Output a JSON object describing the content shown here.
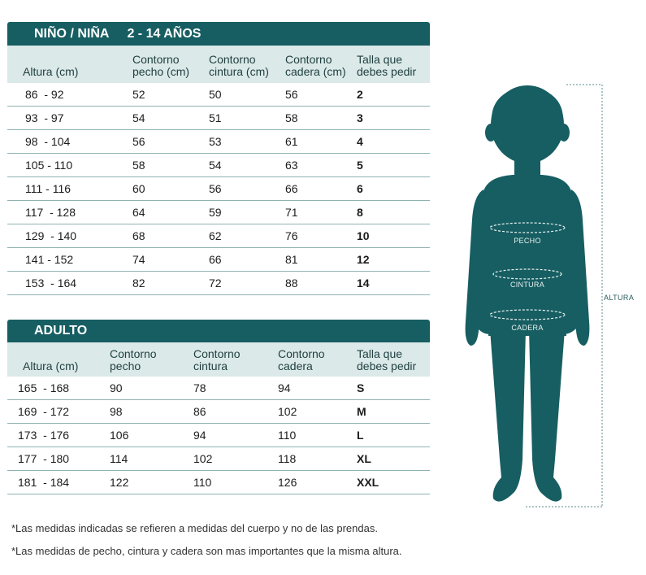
{
  "kids": {
    "title": "NIÑO / NIÑA",
    "range": "2 - 14 AÑOS",
    "headers": [
      "Altura (cm)",
      "Contorno\npecho (cm)",
      "Contorno\ncintura (cm)",
      "Contorno\ncadera (cm)",
      "Talla que\ndebes pedir"
    ],
    "rows": [
      [
        "86  - 92",
        "52",
        "50",
        "56",
        "2"
      ],
      [
        "93  - 97",
        "54",
        "51",
        "58",
        "3"
      ],
      [
        "98  - 104",
        "56",
        "53",
        "61",
        "4"
      ],
      [
        "105 - 110",
        "58",
        "54",
        "63",
        "5"
      ],
      [
        "111 - 116",
        "60",
        "56",
        "66",
        "6"
      ],
      [
        "117  - 128",
        "64",
        "59",
        "71",
        "8"
      ],
      [
        "129  - 140",
        "68",
        "62",
        "76",
        "10"
      ],
      [
        "141 - 152",
        "74",
        "66",
        "81",
        "12"
      ],
      [
        "153  - 164",
        "82",
        "72",
        "88",
        "14"
      ]
    ]
  },
  "adult": {
    "title": "ADULTO",
    "headers": [
      "Altura (cm)",
      "Contorno\npecho",
      "Contorno\ncintura",
      "Contorno\ncadera",
      "Talla que\ndebes pedir"
    ],
    "rows": [
      [
        "165  - 168",
        "90",
        "78",
        "94",
        "S"
      ],
      [
        "169  - 172",
        "98",
        "86",
        "102",
        "M"
      ],
      [
        "173  - 176",
        "106",
        "94",
        "110",
        "L"
      ],
      [
        "177  - 180",
        "114",
        "102",
        "118",
        "XL"
      ],
      [
        "181  - 184",
        "122",
        "110",
        "126",
        "XXL"
      ]
    ]
  },
  "notes": [
    "*Las medidas indicadas se refieren a medidas del cuerpo y no de las prendas.",
    "*Las medidas de pecho, cintura y cadera son mas importantes que la misma altura."
  ],
  "figure": {
    "labels": {
      "chest": "PECHO",
      "waist": "CINTURA",
      "hip": "CADERA",
      "height": "ALTURA"
    },
    "silhouette_color": "#175e62",
    "header_color": "#175e62",
    "subheader_color": "#dbe9e8"
  }
}
